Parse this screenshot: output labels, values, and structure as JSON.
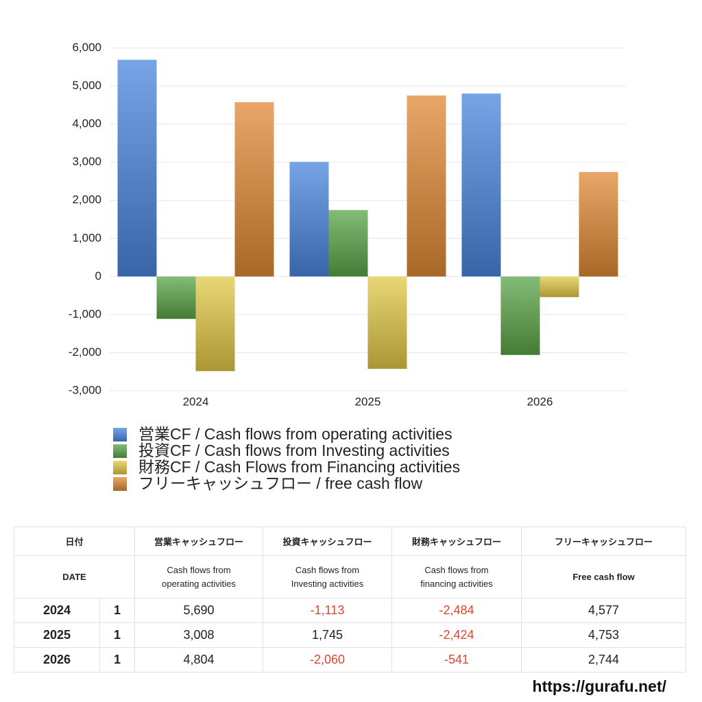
{
  "chart_data": {
    "type": "bar",
    "categories": [
      "2024",
      "2025",
      "2026"
    ],
    "series": [
      {
        "name": "営業CF / Cash flows from operating activities",
        "color": "#4a86de",
        "values": [
          5690,
          3008,
          4804
        ]
      },
      {
        "name": "投資CF / Cash flows from Investing activities",
        "color": "#5aa548",
        "values": [
          -1113,
          1745,
          -2060
        ]
      },
      {
        "name": "財務CF / Cash Flows from Financing activities",
        "color": "#e2c845",
        "values": [
          -2484,
          -2424,
          -541
        ]
      },
      {
        "name": "フリーキャッシュフロー / free cash flow",
        "color": "#e08a35",
        "values": [
          4577,
          4753,
          2744
        ]
      }
    ],
    "ylim": [
      -3000,
      6000
    ],
    "yticks": [
      {
        "value": -3000,
        "label": "-3,000"
      },
      {
        "value": -2000,
        "label": "-2,000"
      },
      {
        "value": -1000,
        "label": "-1,000"
      },
      0,
      {
        "value": 1000,
        "label": "1,000"
      },
      {
        "value": 2000,
        "label": "2,000"
      },
      {
        "value": 3000,
        "label": "3,000"
      },
      {
        "value": 4000,
        "label": "4,000"
      },
      {
        "value": 5000,
        "label": "5,000"
      },
      {
        "value": 6000,
        "label": "6,000"
      }
    ],
    "grid": true
  },
  "table": {
    "headers": [
      [
        "日付",
        "営業キャッシュフロー",
        "投資キャッシュフロー",
        "財務キャッシュフロー",
        "フリーキャッシュフロー"
      ],
      [
        "DATE",
        "Cash flows from\noperating activities",
        "Cash flows from\nInvesting activities",
        "Cash flows from\nfinancing activities",
        "Free cash flow"
      ]
    ],
    "rows": [
      [
        "2024",
        "1",
        "5,690",
        "-1,113",
        "-2,484",
        "4,577"
      ],
      [
        "2025",
        "1",
        "3,008",
        "1,745",
        "-2,424",
        "4,753"
      ],
      [
        "2026",
        "1",
        "4,804",
        "-2,060",
        "-541",
        "2,744"
      ]
    ]
  },
  "footer": "https://gurafu.net/"
}
